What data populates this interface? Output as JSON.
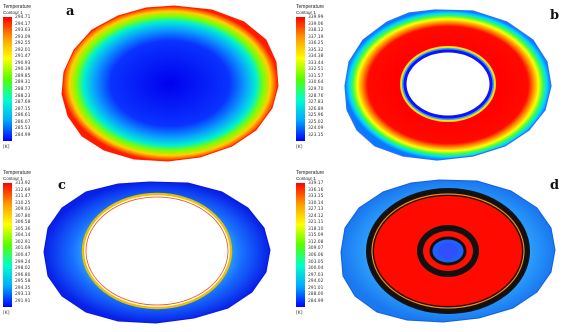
{
  "panels": [
    {
      "label": "a",
      "legend_title": "Temperature",
      "legend_subtitle": "Contour 1",
      "ticks": [
        "294.71",
        "294.17",
        "293.63",
        "293.09",
        "292.55",
        "292.01",
        "291.47",
        "290.93",
        "290.39",
        "289.85",
        "289.31",
        "288.77",
        "288.23",
        "287.69",
        "287.15",
        "286.61",
        "286.07",
        "285.53",
        "284.99"
      ],
      "unit": "[K]"
    },
    {
      "label": "b",
      "legend_title": "Temperature",
      "legend_subtitle": "Contour 1",
      "ticks": [
        "339.99",
        "339.06",
        "338.12",
        "337.19",
        "336.25",
        "335.32",
        "334.38",
        "333.44",
        "332.51",
        "331.57",
        "330.64",
        "329.70",
        "328.76",
        "327.83",
        "326.89",
        "325.96",
        "325.02",
        "324.09",
        "323.15"
      ],
      "unit": "[K]"
    },
    {
      "label": "c",
      "legend_title": "Temperature",
      "legend_subtitle": "Contour 1",
      "ticks": [
        "313.92",
        "312.69",
        "311.47",
        "310.25",
        "309.03",
        "307.80",
        "306.58",
        "305.36",
        "304.14",
        "302.91",
        "301.69",
        "300.47",
        "299.24",
        "298.02",
        "296.80",
        "295.58",
        "294.35",
        "293.13",
        "291.91"
      ],
      "unit": "[K]"
    },
    {
      "label": "d",
      "legend_title": "Temperature",
      "legend_subtitle": "Contour 1",
      "ticks": [
        "339.17",
        "336.16",
        "333.15",
        "330.14",
        "327.13",
        "324.12",
        "321.11",
        "318.10",
        "315.09",
        "312.08",
        "309.07",
        "306.06",
        "303.05",
        "300.04",
        "297.03",
        "294.02",
        "291.01",
        "288.00",
        "284.99"
      ],
      "unit": "[K]"
    }
  ],
  "colormap": [
    "#0000ff",
    "#00aaff",
    "#00ffcc",
    "#55ff00",
    "#ffff00",
    "#ff9900",
    "#ff0000"
  ]
}
